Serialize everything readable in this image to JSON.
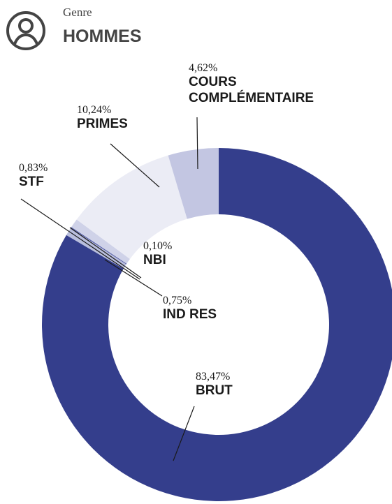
{
  "chart_data": {
    "type": "donut",
    "subtitle": "Genre",
    "title": "HOMMES",
    "categories": [
      "BRUT",
      "IND RES",
      "NBI",
      "STF",
      "PRIMES",
      "COURS COMPLÉMENTAIRE"
    ],
    "values": [
      83.47,
      0.75,
      0.1,
      0.83,
      10.24,
      4.62
    ],
    "value_labels": [
      "83,47%",
      "0,75%",
      "0,10%",
      "0,83%",
      "10,24%",
      "4,62%"
    ],
    "colors": [
      "#343e8c",
      "#b9bedd",
      "#5a63a8",
      "#cfd2e8",
      "#ebecf5",
      "#c3c6e2"
    ]
  }
}
